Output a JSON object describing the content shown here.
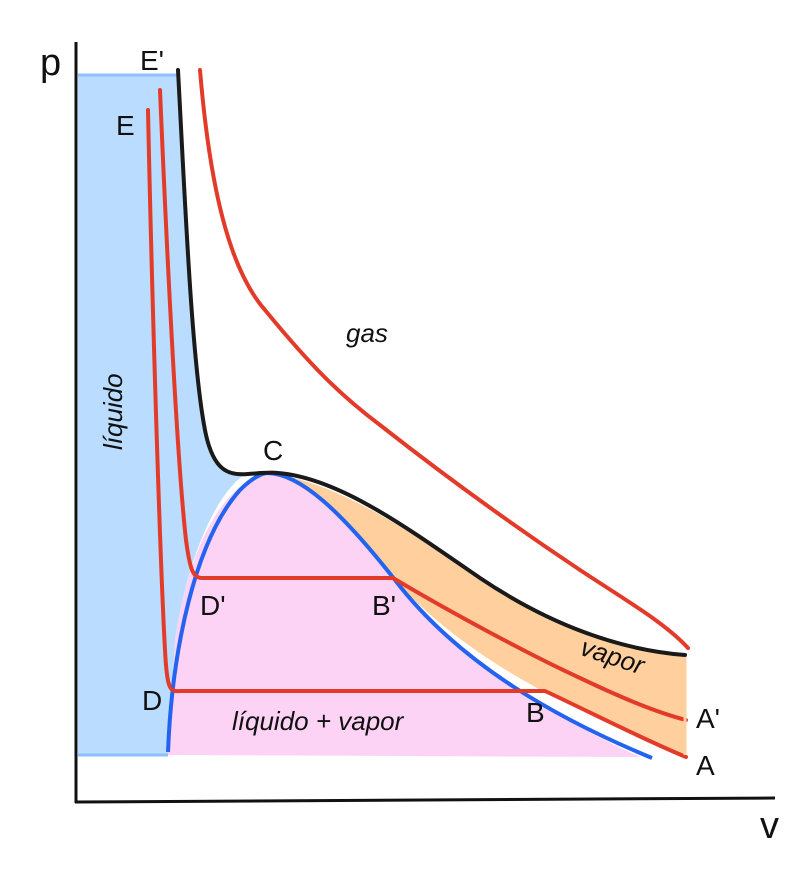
{
  "axes": {
    "x_label": "v",
    "y_label": "p"
  },
  "regions": {
    "liquid": "líquido",
    "gas": "gas",
    "vapor": "vapor",
    "mixture": "líquido + vapor"
  },
  "points": {
    "critical": "C",
    "E": "E",
    "E_prime": "E'",
    "D": "D",
    "D_prime": "D'",
    "B": "B",
    "B_prime": "B'",
    "A": "A",
    "A_prime": "A'"
  },
  "colors": {
    "liquid_fill": "#b9dcff",
    "liquid_edge": "#8fbfff",
    "mixture_fill": "#fdd3f5",
    "vapor_fill": "#ffcf9e",
    "isotherm": "#e33b2a",
    "critical_isotherm": "#1a1a1a",
    "saturation_dome": "#2463f0",
    "axis": "#111111"
  }
}
